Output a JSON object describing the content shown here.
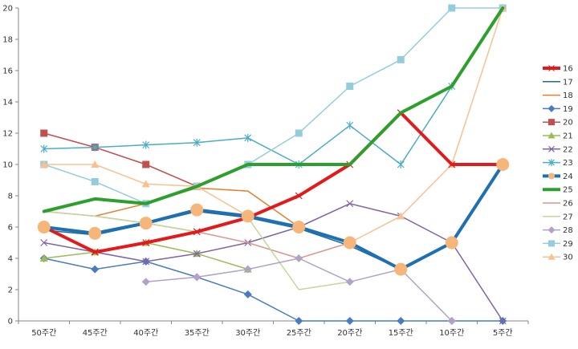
{
  "chart_data": {
    "type": "line",
    "categories": [
      "50주간",
      "45주간",
      "40주간",
      "35주간",
      "30주간",
      "25주간",
      "20주간",
      "15주간",
      "10주간",
      "5주간"
    ],
    "ylim": [
      0,
      20
    ],
    "yticks": [
      0,
      2,
      4,
      6,
      8,
      10,
      12,
      14,
      16,
      18,
      20
    ],
    "grid": false,
    "legend_position": "right",
    "series": [
      {
        "name": "16",
        "color": "#e31a1c",
        "marker": "x",
        "highlight": true,
        "values": [
          6,
          4.4,
          5,
          5.7,
          6.6,
          8,
          10,
          13.3,
          10,
          10
        ]
      },
      {
        "name": "17",
        "color": "#1f6b8c",
        "marker": "none",
        "highlight": false,
        "values": [
          5.8,
          5.5,
          6.2,
          7,
          6.6,
          5.9,
          4.8,
          3.3,
          5,
          10
        ]
      },
      {
        "name": "18",
        "color": "#e87d2a",
        "marker": "none",
        "highlight": false,
        "values": [
          null,
          6.7,
          7.5,
          8.5,
          8.3,
          6,
          null,
          null,
          null,
          null
        ]
      },
      {
        "name": "19",
        "color": "#4a7bbf",
        "marker": "diamond",
        "highlight": false,
        "values": [
          4,
          3.3,
          3.8,
          2.8,
          1.7,
          0,
          0,
          0,
          0,
          0
        ]
      },
      {
        "name": "20",
        "color": "#c0504d",
        "marker": "square",
        "highlight": false,
        "values": [
          12,
          11.1,
          10,
          8.6,
          null,
          null,
          null,
          null,
          null,
          null
        ]
      },
      {
        "name": "21",
        "color": "#9bbb59",
        "marker": "triangle",
        "highlight": false,
        "values": [
          4,
          4.4,
          5,
          4.3,
          3.3,
          null,
          null,
          null,
          null,
          null
        ]
      },
      {
        "name": "22",
        "color": "#8064a2",
        "marker": "x",
        "highlight": false,
        "values": [
          5,
          4.4,
          3.8,
          4.3,
          5,
          6,
          7.5,
          6.7,
          5,
          0
        ]
      },
      {
        "name": "23",
        "color": "#4bacc6",
        "marker": "star",
        "highlight": false,
        "values": [
          11,
          11.1,
          11.25,
          11.4,
          11.7,
          10,
          12.5,
          10,
          15,
          20
        ]
      },
      {
        "name": "24",
        "color": "#1f6fb5",
        "marker": "circle",
        "highlight": true,
        "values": [
          6,
          5.6,
          6.25,
          7.1,
          6.7,
          6,
          5,
          3.3,
          5,
          10
        ]
      },
      {
        "name": "25",
        "color": "#2ca02c",
        "marker": "none",
        "highlight": true,
        "values": [
          7,
          7.8,
          7.5,
          8.6,
          10,
          10,
          10,
          13.3,
          15,
          20
        ]
      },
      {
        "name": "26",
        "color": "#d99694",
        "marker": "none",
        "highlight": false,
        "values": [
          7,
          6.7,
          6.25,
          5.7,
          5,
          4,
          5,
          null,
          null,
          null
        ]
      },
      {
        "name": "27",
        "color": "#c3d69b",
        "marker": "none",
        "highlight": false,
        "values": [
          7,
          6.7,
          6.25,
          5.7,
          6.6,
          2,
          2.5,
          null,
          null,
          null
        ]
      },
      {
        "name": "28",
        "color": "#b3a2c7",
        "marker": "diamond",
        "highlight": false,
        "values": [
          null,
          null,
          2.5,
          2.8,
          3.3,
          4,
          2.5,
          3.3,
          0,
          null
        ]
      },
      {
        "name": "29",
        "color": "#93cddd",
        "marker": "square",
        "highlight": false,
        "values": [
          10,
          8.9,
          7.5,
          8.6,
          10,
          12,
          15,
          16.7,
          20,
          20
        ]
      },
      {
        "name": "30",
        "color": "#fac090",
        "marker": "triangle",
        "highlight": false,
        "values": [
          10,
          10,
          8.75,
          8.6,
          6.7,
          6,
          5,
          6.7,
          10,
          20
        ]
      }
    ]
  }
}
